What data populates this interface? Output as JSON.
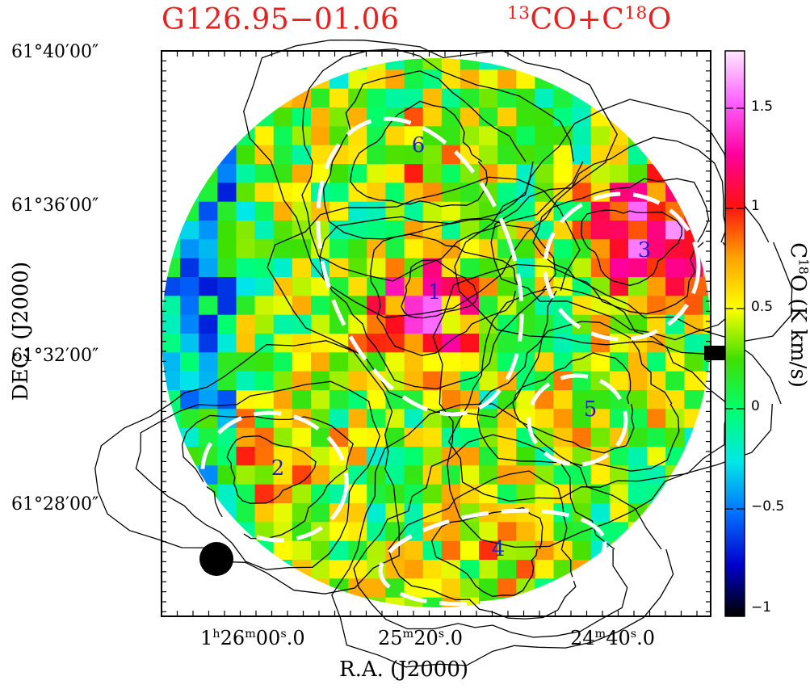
{
  "titles": {
    "source": "G126.95−01.06",
    "tracer_pre": "13",
    "tracer_mid": "CO+C",
    "tracer_sup": "18",
    "tracer_post": "O"
  },
  "axes": {
    "xlabel": "R.A. (J2000)",
    "ylabel": "DEC. (J2000)",
    "x_ticks": [
      {
        "h": "1",
        "hs": "h",
        "m": "26",
        "ms": "m",
        "s": "00",
        "ss": "s",
        "frac": ".0"
      },
      {
        "h": "",
        "hs": "",
        "m": "25",
        "ms": "m",
        "s": "20",
        "ss": "s",
        "frac": ".0"
      },
      {
        "h": "",
        "hs": "",
        "m": "24",
        "ms": "m",
        "s": "40",
        "ss": "s",
        "frac": ".0"
      }
    ],
    "y_ticks": [
      "61°40′00″",
      "61°36′00″",
      "61°32′00″",
      "61°28′00″"
    ]
  },
  "colorbar": {
    "label_pre": "C",
    "label_sup": "18",
    "label_post": "O (K km/s)",
    "ticks": [
      "1.5",
      "1",
      "0.5",
      "0",
      "−0.5",
      "−1"
    ],
    "min": -1.05,
    "max": 1.75,
    "stops": [
      "#000000",
      "#0000cc",
      "#0070ff",
      "#00e8e8",
      "#00ff70",
      "#40e000",
      "#ffff00",
      "#ffa000",
      "#ff1010",
      "#ff00a0",
      "#ff60ff",
      "#ffe8ff"
    ]
  },
  "chart_data": {
    "type": "heatmap",
    "x_axis": "R.A. (J2000)",
    "y_axis": "DEC. (J2000)",
    "x_tick_labels": [
      "1h26m00.0s",
      "25m20.0s",
      "24m40.0s"
    ],
    "y_tick_labels": [
      "61°40′00″",
      "61°36′00″",
      "61°32′00″",
      "61°28′00″"
    ],
    "value_range": [
      -1.05,
      1.75
    ],
    "map_center_x_arcmin": 0,
    "peak_regions": [
      {
        "label": "1",
        "ra": "1h25m17s",
        "dec": "61°33′45″"
      },
      {
        "label": "2",
        "ra": "1h25m55s",
        "dec": "61°29′00″"
      },
      {
        "label": "3",
        "ra": "1h24m38s",
        "dec": "61°34′50″"
      },
      {
        "label": "4",
        "ra": "1h25m12s",
        "dec": "61°27′00″"
      },
      {
        "label": "5",
        "ra": "1h24m52s",
        "dec": "61°30′40″"
      },
      {
        "label": "6",
        "ra": "1h25m28s",
        "dec": "61°37′45″"
      }
    ],
    "grid_cells": 30,
    "seed": 11
  },
  "markers": [
    "1",
    "2",
    "3",
    "4",
    "5",
    "6"
  ]
}
